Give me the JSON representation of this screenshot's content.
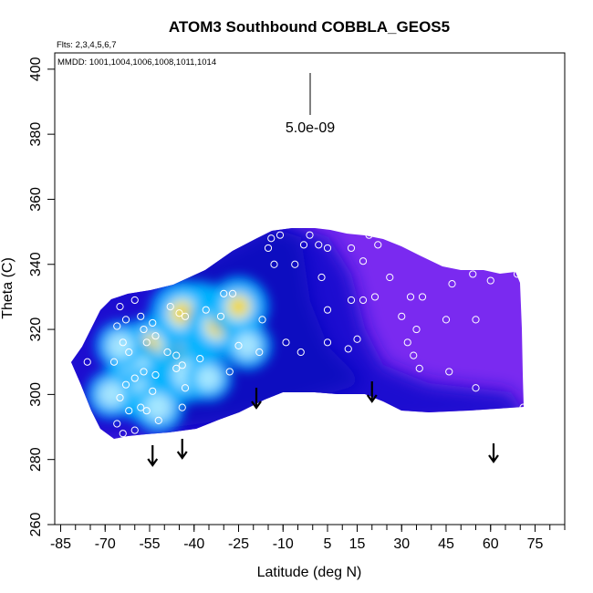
{
  "chart_data": {
    "type": "heatmap",
    "title": "ATOM3 Southbound COBBLA_GEOS5",
    "flights_label": "Flts: 2,3,4,5,6,7",
    "mmdd_label": "MMDD: 1001,1004,1006,1008,1011,1014",
    "xlabel": "Latitude (deg N)",
    "ylabel": "Theta (C)",
    "xlim": [
      -87,
      85
    ],
    "ylim": [
      260,
      405
    ],
    "x_ticks": [
      "-85",
      "-70",
      "-55",
      "-40",
      "-25",
      "-10",
      "5",
      "15",
      "30",
      "45",
      "60",
      "75"
    ],
    "x_tick_values": [
      -85,
      -70,
      -55,
      -40,
      -25,
      -10,
      5,
      15,
      30,
      45,
      60,
      75
    ],
    "y_ticks": [
      "260",
      "280",
      "300",
      "320",
      "340",
      "360",
      "380",
      "400"
    ],
    "y_tick_values": [
      260,
      280,
      300,
      320,
      340,
      360,
      380,
      400
    ],
    "scale_bar_label": "5.0e-09",
    "tropopause_arrows_lat": [
      -54,
      -44,
      -19,
      20,
      61
    ],
    "observation_points": [
      [
        -65,
        327
      ],
      [
        -66,
        321
      ],
      [
        -63,
        323
      ],
      [
        -60,
        329
      ],
      [
        -58,
        324
      ],
      [
        -57,
        320
      ],
      [
        -54,
        322
      ],
      [
        -64,
        316
      ],
      [
        -62,
        313
      ],
      [
        -67,
        310
      ],
      [
        -76,
        310
      ],
      [
        -56,
        316
      ],
      [
        -53,
        318
      ],
      [
        -49,
        313
      ],
      [
        -46,
        312
      ],
      [
        -57,
        307
      ],
      [
        -60,
        305
      ],
      [
        -54,
        301
      ],
      [
        -46,
        308
      ],
      [
        -44,
        309
      ],
      [
        -53,
        306
      ],
      [
        -43,
        302
      ],
      [
        -63,
        303
      ],
      [
        -65,
        299
      ],
      [
        -62,
        295
      ],
      [
        -58,
        296
      ],
      [
        -56,
        295
      ],
      [
        -52,
        292
      ],
      [
        -44,
        296
      ],
      [
        -66,
        291
      ],
      [
        -64,
        288
      ],
      [
        -60,
        289
      ],
      [
        -48,
        327
      ],
      [
        -45,
        325
      ],
      [
        -43,
        324
      ],
      [
        -38,
        311
      ],
      [
        -36,
        326
      ],
      [
        -31,
        324
      ],
      [
        -30,
        331
      ],
      [
        -27,
        331
      ],
      [
        -25,
        315
      ],
      [
        -28,
        307
      ],
      [
        -17,
        323
      ],
      [
        -18,
        313
      ],
      [
        -13,
        340
      ],
      [
        -6,
        340
      ],
      [
        -3,
        346
      ],
      [
        -1,
        349
      ],
      [
        -11,
        349
      ],
      [
        -14,
        348
      ],
      [
        -15,
        345
      ],
      [
        2,
        346
      ],
      [
        5,
        345
      ],
      [
        13,
        345
      ],
      [
        19,
        349
      ],
      [
        22,
        346
      ],
      [
        3,
        336
      ],
      [
        5,
        326
      ],
      [
        -9,
        316
      ],
      [
        -4,
        313
      ],
      [
        5,
        316
      ],
      [
        12,
        314
      ],
      [
        15,
        317
      ],
      [
        13,
        329
      ],
      [
        17,
        329
      ],
      [
        21,
        330
      ],
      [
        17,
        341
      ],
      [
        26,
        336
      ],
      [
        30,
        324
      ],
      [
        33,
        330
      ],
      [
        37,
        330
      ],
      [
        35,
        320
      ],
      [
        32,
        316
      ],
      [
        34,
        312
      ],
      [
        36,
        308
      ],
      [
        46,
        307
      ],
      [
        45,
        323
      ],
      [
        55,
        323
      ],
      [
        47,
        334
      ],
      [
        54,
        337
      ],
      [
        60,
        335
      ],
      [
        69,
        337
      ],
      [
        55,
        302
      ],
      [
        71,
        296
      ]
    ],
    "field_hotspots": [
      {
        "lat": -47,
        "theta": 312,
        "value": 1.0
      },
      {
        "lat": -38,
        "theta": 324,
        "value": 0.85
      },
      {
        "lat": -44,
        "theta": 325,
        "value": 0.75
      },
      {
        "lat": -32,
        "theta": 321,
        "value": 0.7
      },
      {
        "lat": -25,
        "theta": 327,
        "value": 0.65
      },
      {
        "lat": -55,
        "theta": 315,
        "value": 0.6
      },
      {
        "lat": -60,
        "theta": 308,
        "value": 0.55
      },
      {
        "lat": -42,
        "theta": 306,
        "value": 0.55
      },
      {
        "lat": -58,
        "theta": 300,
        "value": 0.5
      },
      {
        "lat": -52,
        "theta": 296,
        "value": 0.45
      },
      {
        "lat": -65,
        "theta": 315,
        "value": 0.4
      },
      {
        "lat": -22,
        "theta": 315,
        "value": 0.4
      },
      {
        "lat": -68,
        "theta": 300,
        "value": 0.4
      },
      {
        "lat": -35,
        "theta": 305,
        "value": 0.35
      }
    ],
    "colors": {
      "high": "#ffd400",
      "mid": "#00b4ff",
      "low": "#0000cc",
      "background_region": "#7a2af0",
      "points": "#ffffff"
    },
    "grid": false
  }
}
